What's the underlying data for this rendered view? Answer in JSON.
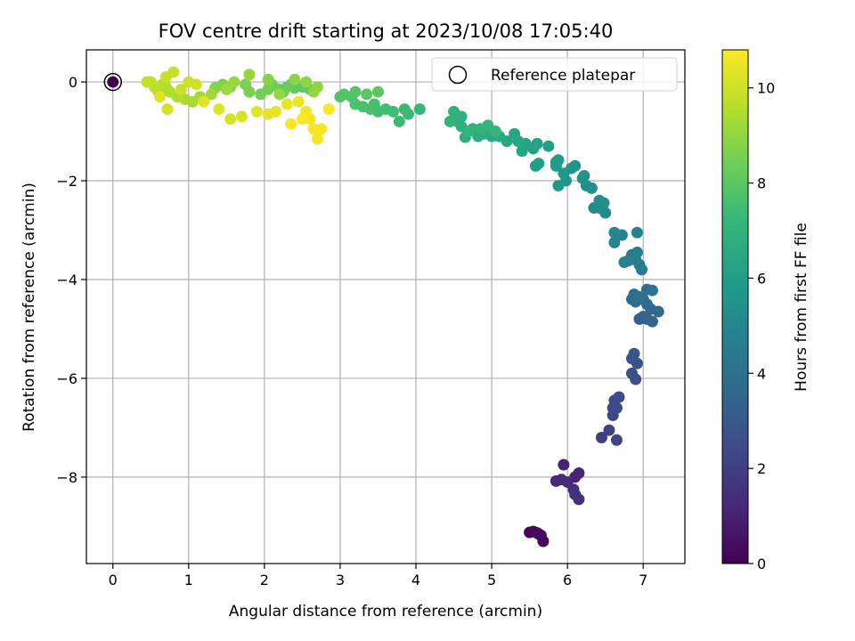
{
  "chart_data": {
    "type": "scatter",
    "title": "FOV centre drift starting at 2023/10/08 17:05:40",
    "xlabel": "Angular distance from reference (arcmin)",
    "ylabel": "Rotation from reference (arcmin)",
    "colorbar_label": "Hours from first FF file",
    "xlim": [
      -0.35,
      7.55
    ],
    "ylim": [
      -9.75,
      0.65
    ],
    "clim": [
      0,
      10.8
    ],
    "x_ticks": [
      0,
      1,
      2,
      3,
      4,
      5,
      6,
      7
    ],
    "y_ticks": [
      0,
      -2,
      -4,
      -6,
      -8
    ],
    "colorbar_ticks": [
      0,
      2,
      4,
      6,
      8,
      10
    ],
    "grid": true,
    "legend": {
      "position": "top-right",
      "entries": [
        "Reference platepar"
      ]
    },
    "reference_point": {
      "x": 0,
      "y": 0,
      "hours": 0
    },
    "colormap": [
      "#440154",
      "#482878",
      "#3e4a89",
      "#31688e",
      "#26828e",
      "#1f9e89",
      "#35b779",
      "#6ece58",
      "#b5de2b",
      "#fde725"
    ],
    "points": [
      [
        5.5,
        -9.12,
        0.05
      ],
      [
        5.6,
        -9.13,
        0.1
      ],
      [
        5.65,
        -9.18,
        0.15
      ],
      [
        5.68,
        -9.3,
        0.2
      ],
      [
        5.55,
        -9.1,
        0.25
      ],
      [
        5.62,
        -9.15,
        0.3
      ],
      [
        5.95,
        -7.75,
        1.0
      ],
      [
        6.1,
        -8.0,
        1.1
      ],
      [
        6.15,
        -7.92,
        1.15
      ],
      [
        5.85,
        -8.08,
        1.2
      ],
      [
        5.92,
        -8.05,
        1.25
      ],
      [
        6.0,
        -8.1,
        1.3
      ],
      [
        6.08,
        -8.25,
        1.4
      ],
      [
        6.1,
        -8.35,
        1.45
      ],
      [
        6.15,
        -8.45,
        1.5
      ],
      [
        6.45,
        -7.2,
        2.0
      ],
      [
        6.55,
        -7.05,
        2.1
      ],
      [
        6.65,
        -7.25,
        2.2
      ],
      [
        6.6,
        -6.75,
        2.3
      ],
      [
        6.6,
        -6.6,
        2.35
      ],
      [
        6.65,
        -6.6,
        2.4
      ],
      [
        6.62,
        -6.45,
        2.45
      ],
      [
        6.68,
        -6.38,
        2.5
      ],
      [
        6.9,
        -6.02,
        2.6
      ],
      [
        6.85,
        -5.9,
        2.65
      ],
      [
        6.92,
        -5.7,
        2.7
      ],
      [
        6.85,
        -5.6,
        2.75
      ],
      [
        6.88,
        -5.5,
        2.8
      ],
      [
        6.95,
        -4.8,
        3.3
      ],
      [
        7.0,
        -4.75,
        3.4
      ],
      [
        7.05,
        -4.8,
        3.45
      ],
      [
        7.12,
        -4.85,
        3.5
      ],
      [
        7.2,
        -4.65,
        3.55
      ],
      [
        7.1,
        -4.6,
        3.6
      ],
      [
        7.05,
        -4.5,
        3.65
      ],
      [
        7.0,
        -4.4,
        3.7
      ],
      [
        6.9,
        -4.45,
        3.75
      ],
      [
        6.85,
        -4.4,
        3.8
      ],
      [
        6.88,
        -4.3,
        3.85
      ],
      [
        7.05,
        -4.2,
        3.9
      ],
      [
        7.12,
        -4.22,
        3.95
      ],
      [
        6.95,
        -4.35,
        4.0
      ],
      [
        6.98,
        -3.8,
        4.4
      ],
      [
        6.95,
        -3.7,
        4.5
      ],
      [
        6.9,
        -3.6,
        4.55
      ],
      [
        6.85,
        -3.5,
        4.6
      ],
      [
        6.92,
        -3.45,
        4.65
      ],
      [
        6.75,
        -3.65,
        4.7
      ],
      [
        6.8,
        -3.62,
        4.75
      ],
      [
        6.92,
        -3.05,
        4.8
      ],
      [
        6.72,
        -3.1,
        4.85
      ],
      [
        6.62,
        -3.25,
        4.9
      ],
      [
        6.62,
        -3.05,
        4.95
      ],
      [
        6.5,
        -2.65,
        5.1
      ],
      [
        6.42,
        -2.55,
        5.15
      ],
      [
        6.35,
        -2.55,
        5.2
      ],
      [
        6.48,
        -2.45,
        5.25
      ],
      [
        6.42,
        -2.4,
        5.3
      ],
      [
        6.32,
        -2.15,
        5.4
      ],
      [
        6.25,
        -2.1,
        5.45
      ],
      [
        6.2,
        -1.95,
        5.5
      ],
      [
        6.22,
        -1.9,
        5.55
      ],
      [
        6.1,
        -1.7,
        5.6
      ],
      [
        6.05,
        -1.75,
        5.65
      ],
      [
        5.98,
        -2.0,
        5.7
      ],
      [
        5.88,
        -2.1,
        5.75
      ],
      [
        5.95,
        -1.85,
        5.8
      ],
      [
        5.85,
        -1.7,
        5.85
      ],
      [
        5.85,
        -1.62,
        5.9
      ],
      [
        5.88,
        -1.58,
        5.95
      ],
      [
        5.62,
        -1.65,
        6.0
      ],
      [
        5.58,
        -1.7,
        6.05
      ],
      [
        5.75,
        -1.3,
        6.1
      ],
      [
        5.6,
        -1.25,
        6.15
      ],
      [
        5.55,
        -1.35,
        6.2
      ],
      [
        5.45,
        -1.25,
        6.25
      ],
      [
        5.42,
        -1.3,
        6.3
      ],
      [
        5.4,
        -1.4,
        6.35
      ],
      [
        5.35,
        -1.2,
        6.4
      ],
      [
        5.3,
        -1.05,
        6.45
      ],
      [
        5.2,
        -1.2,
        6.5
      ],
      [
        5.1,
        -1.1,
        6.55
      ],
      [
        5.0,
        -1.1,
        6.6
      ],
      [
        4.9,
        -1.05,
        6.65
      ],
      [
        4.82,
        -1.1,
        6.7
      ],
      [
        4.75,
        -0.95,
        6.72
      ],
      [
        4.65,
        -1.12,
        6.75
      ],
      [
        4.6,
        -0.9,
        6.8
      ],
      [
        4.55,
        -0.8,
        6.85
      ],
      [
        4.6,
        -0.7,
        6.9
      ],
      [
        4.5,
        -0.6,
        6.95
      ],
      [
        4.45,
        -0.8,
        7.0
      ],
      [
        4.85,
        -0.95,
        7.02
      ],
      [
        4.95,
        -0.88,
        7.05
      ],
      [
        5.05,
        -1.0,
        7.08
      ],
      [
        4.7,
        -1.0,
        7.1
      ],
      [
        4.05,
        -0.55,
        7.2
      ],
      [
        3.9,
        -0.65,
        7.25
      ],
      [
        3.85,
        -0.55,
        7.3
      ],
      [
        3.78,
        -0.8,
        7.35
      ],
      [
        3.7,
        -0.6,
        7.4
      ],
      [
        3.6,
        -0.55,
        7.45
      ],
      [
        3.5,
        -0.6,
        7.5
      ],
      [
        3.45,
        -0.45,
        7.55
      ],
      [
        3.4,
        -0.55,
        7.6
      ],
      [
        3.3,
        -0.5,
        7.65
      ],
      [
        3.2,
        -0.45,
        7.7
      ],
      [
        3.15,
        -0.3,
        7.75
      ],
      [
        3.05,
        -0.25,
        7.8
      ],
      [
        3.0,
        -0.3,
        7.85
      ],
      [
        3.2,
        -0.2,
        7.9
      ],
      [
        3.35,
        -0.25,
        7.95
      ],
      [
        3.5,
        -0.2,
        8.0
      ],
      [
        2.6,
        -0.15,
        8.05
      ],
      [
        2.5,
        -0.1,
        8.1
      ],
      [
        2.4,
        -0.12,
        8.15
      ],
      [
        2.35,
        -0.05,
        8.2
      ],
      [
        2.3,
        -0.1,
        8.25
      ],
      [
        2.25,
        -0.2,
        8.3
      ],
      [
        2.2,
        -0.15,
        8.35
      ],
      [
        2.1,
        -0.05,
        8.4
      ],
      [
        2.05,
        -0.15,
        8.45
      ],
      [
        1.95,
        -0.25,
        8.5
      ],
      [
        1.8,
        -0.2,
        8.55
      ],
      [
        1.75,
        -0.05,
        8.6
      ],
      [
        1.55,
        -0.1,
        8.65
      ],
      [
        1.45,
        -0.05,
        8.7
      ],
      [
        1.35,
        -0.12,
        8.75
      ],
      [
        2.05,
        0.05,
        8.8
      ],
      [
        2.4,
        0.05,
        8.85
      ],
      [
        2.55,
        0.0,
        8.9
      ],
      [
        2.7,
        -0.1,
        8.95
      ],
      [
        2.65,
        -0.2,
        9.0
      ],
      [
        2.2,
        -0.25,
        9.05
      ],
      [
        1.8,
        0.15,
        9.1
      ],
      [
        1.6,
        0.0,
        9.15
      ],
      [
        1.5,
        -0.15,
        9.2
      ],
      [
        1.3,
        -0.25,
        9.25
      ],
      [
        1.15,
        -0.3,
        9.3
      ],
      [
        1.05,
        -0.4,
        9.35
      ],
      [
        0.95,
        -0.35,
        9.4
      ],
      [
        0.85,
        -0.3,
        9.45
      ],
      [
        0.75,
        -0.2,
        9.5
      ],
      [
        0.7,
        -0.1,
        9.55
      ],
      [
        0.65,
        -0.05,
        9.6
      ],
      [
        0.6,
        -0.2,
        9.65
      ],
      [
        0.55,
        -0.1,
        9.7
      ],
      [
        0.5,
        0.0,
        9.75
      ],
      [
        0.45,
        0.0,
        9.8
      ],
      [
        0.8,
        0.2,
        9.85
      ],
      [
        0.7,
        0.1,
        9.9
      ],
      [
        0.9,
        -0.15,
        9.95
      ],
      [
        1.0,
        0.0,
        10.0
      ],
      [
        1.1,
        -0.05,
        10.05
      ],
      [
        0.72,
        -0.55,
        10.1
      ],
      [
        1.55,
        -0.75,
        10.15
      ],
      [
        1.7,
        -0.7,
        10.2
      ],
      [
        1.4,
        -0.55,
        10.25
      ],
      [
        0.62,
        -0.3,
        10.3
      ],
      [
        1.2,
        -0.4,
        10.35
      ],
      [
        1.9,
        -0.6,
        10.38
      ],
      [
        2.05,
        -0.65,
        10.4
      ],
      [
        2.15,
        -0.6,
        10.45
      ],
      [
        2.3,
        -0.45,
        10.5
      ],
      [
        2.45,
        -0.4,
        10.55
      ],
      [
        2.55,
        -0.6,
        10.6
      ],
      [
        2.6,
        -0.75,
        10.65
      ],
      [
        2.65,
        -0.95,
        10.68
      ],
      [
        2.7,
        -1.15,
        10.7
      ],
      [
        2.75,
        -0.95,
        10.72
      ],
      [
        2.85,
        -0.55,
        10.75
      ],
      [
        2.35,
        -0.85,
        10.77
      ],
      [
        2.5,
        -0.75,
        10.8
      ]
    ]
  }
}
